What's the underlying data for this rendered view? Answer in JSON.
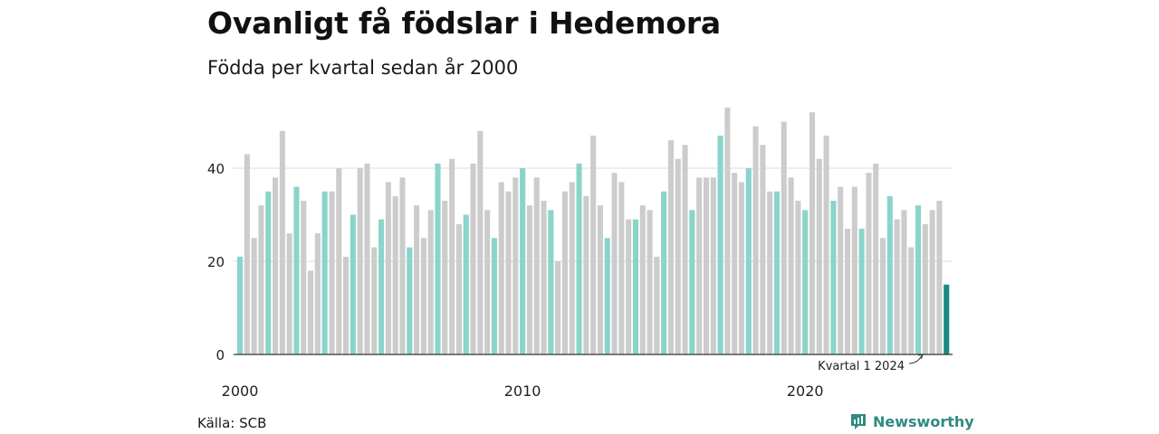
{
  "title": "Ovanligt få födslar i Hedemora",
  "subtitle": "Födda per kvartal sedan år 2000",
  "source": "Källa: SCB",
  "brand": {
    "name": "Newsworthy",
    "icon": "newsworthy-logo-icon"
  },
  "colors": {
    "q1": "#8ad4cb",
    "other": "#cccccc",
    "latest": "#1a8a82",
    "grid": "#dddddd",
    "axis": "#333333",
    "brand": "#2e8b80"
  },
  "chart_data": {
    "type": "bar",
    "title": "Ovanligt få födslar i Hedemora",
    "subtitle": "Födda per kvartal sedan år 2000",
    "xlabel": "",
    "ylabel": "",
    "ylim": [
      0,
      55
    ],
    "grid": true,
    "y_ticks": [
      0,
      20,
      40
    ],
    "x_tick_labels": [
      "2000",
      "2010",
      "2020"
    ],
    "start": "2000 kvartal 1",
    "annotation": "Kvartal 1 2024",
    "values": [
      21,
      43,
      25,
      32,
      35,
      38,
      48,
      26,
      36,
      33,
      18,
      26,
      35,
      35,
      40,
      21,
      30,
      40,
      41,
      23,
      29,
      37,
      34,
      38,
      23,
      32,
      25,
      31,
      41,
      33,
      42,
      28,
      30,
      41,
      48,
      31,
      25,
      37,
      35,
      38,
      40,
      32,
      38,
      33,
      31,
      20,
      35,
      37,
      41,
      34,
      47,
      32,
      25,
      39,
      37,
      29,
      29,
      32,
      31,
      21,
      35,
      46,
      42,
      45,
      31,
      38,
      38,
      38,
      47,
      53,
      39,
      37,
      40,
      49,
      45,
      35,
      35,
      50,
      38,
      33,
      31,
      52,
      42,
      47,
      33,
      36,
      27,
      36,
      27,
      39,
      41,
      25,
      34,
      29,
      31,
      23,
      32,
      28,
      31,
      33,
      15
    ]
  }
}
